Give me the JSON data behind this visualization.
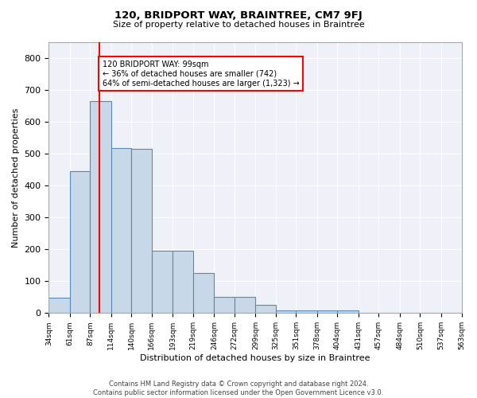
{
  "title": "120, BRIDPORT WAY, BRAINTREE, CM7 9FJ",
  "subtitle": "Size of property relative to detached houses in Braintree",
  "xlabel": "Distribution of detached houses by size in Braintree",
  "ylabel": "Number of detached properties",
  "bar_edges": [
    34,
    61,
    87,
    114,
    140,
    166,
    193,
    219,
    246,
    272,
    299,
    325,
    351,
    378,
    404,
    431,
    457,
    484,
    510,
    537,
    563
  ],
  "bar_heights": [
    48,
    446,
    663,
    516,
    514,
    195,
    195,
    125,
    50,
    50,
    25,
    8,
    8,
    8,
    8,
    0,
    0,
    0,
    0,
    0
  ],
  "bar_color": "#c8d8e8",
  "bar_edge_color": "#5588bb",
  "red_line_x": 99,
  "annotation_text": "120 BRIDPORT WAY: 99sqm\n← 36% of detached houses are smaller (742)\n64% of semi-detached houses are larger (1,323) →",
  "annotation_box_color": "white",
  "annotation_box_edge_color": "red",
  "yticks": [
    0,
    100,
    200,
    300,
    400,
    500,
    600,
    700,
    800
  ],
  "ylim": [
    0,
    850
  ],
  "background_color": "#eef2f8",
  "grid_color": "white",
  "footer": "Contains HM Land Registry data © Crown copyright and database right 2024.\nContains public sector information licensed under the Open Government Licence v3.0."
}
